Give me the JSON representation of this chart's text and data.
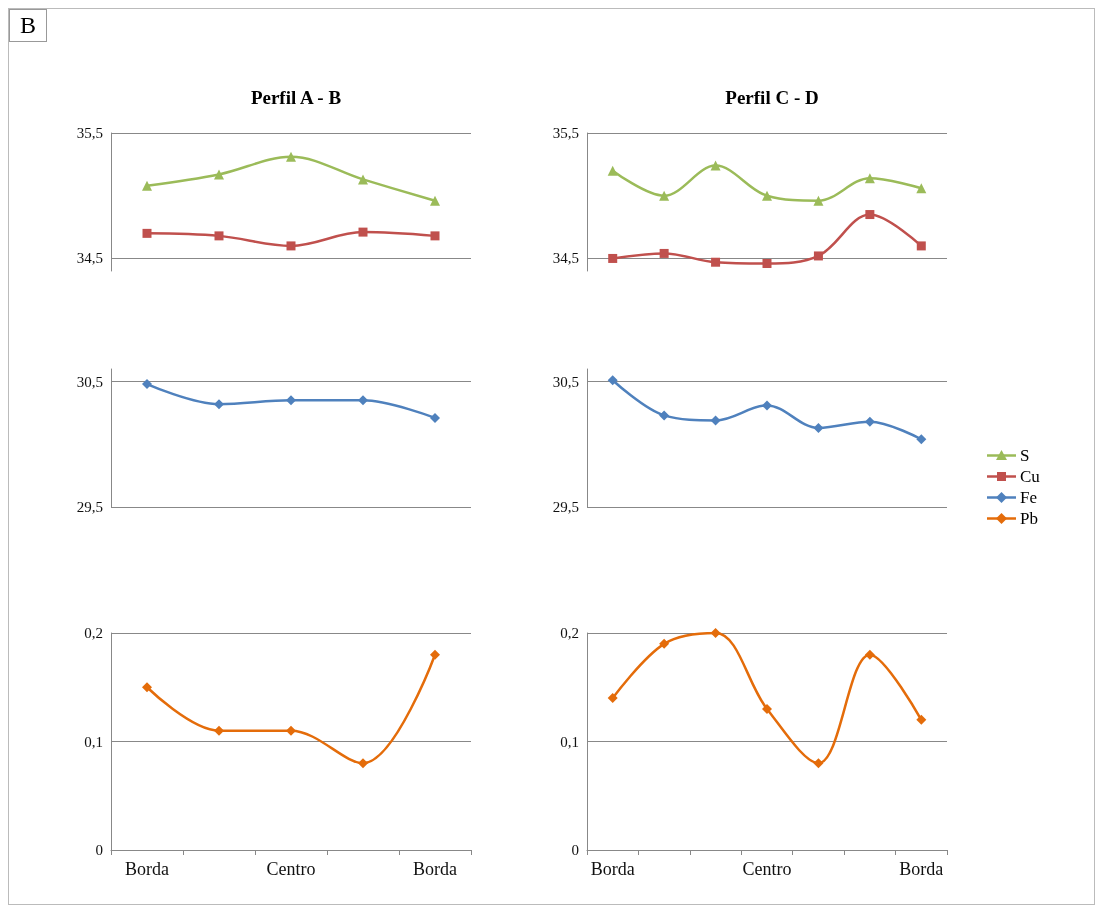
{
  "chart_data": [
    {
      "type": "line",
      "title": "Perfil A - B",
      "annotations": [
        "B"
      ],
      "categories": [
        "Borda",
        null,
        "Centro",
        null,
        "Borda"
      ],
      "tick_labels": "y",
      "yticks": [
        {
          "value": 34.5,
          "label": "34,5"
        },
        {
          "value": 35.5,
          "label": "35,5"
        }
      ],
      "ylim": [
        34.4,
        35.5
      ],
      "grid": "y",
      "legend": "right",
      "series": [
        {
          "name": "S",
          "color": "#9bbb59",
          "marker": "triangle",
          "values": [
            35.08,
            35.17,
            35.31,
            35.13,
            34.96
          ]
        },
        {
          "name": "Cu",
          "color": "#c0504d",
          "marker": "square",
          "values": [
            34.7,
            34.68,
            34.6,
            34.71,
            34.68
          ]
        }
      ]
    },
    {
      "type": "line",
      "title": "Perfil C - D",
      "categories": [
        "Borda",
        null,
        null,
        "Centro",
        null,
        null,
        "Borda"
      ],
      "tick_labels": "y",
      "yticks": [
        {
          "value": 34.5,
          "label": "34,5"
        },
        {
          "value": 35.5,
          "label": "35,5"
        }
      ],
      "ylim": [
        34.4,
        35.5
      ],
      "grid": "y",
      "legend": "right",
      "series": [
        {
          "name": "S",
          "color": "#9bbb59",
          "marker": "triangle",
          "values": [
            35.2,
            35.0,
            35.24,
            35.0,
            34.96,
            35.14,
            35.06
          ]
        },
        {
          "name": "Cu",
          "color": "#c0504d",
          "marker": "square",
          "values": [
            34.5,
            34.54,
            34.47,
            34.46,
            34.52,
            34.85,
            34.6
          ]
        }
      ]
    },
    {
      "type": "line",
      "categories": [
        "Borda",
        null,
        "Centro",
        null,
        "Borda"
      ],
      "tick_labels": "y",
      "yticks": [
        {
          "value": 29.5,
          "label": "29,5"
        },
        {
          "value": 30.5,
          "label": "30,5"
        }
      ],
      "ylim": [
        29.5,
        30.6
      ],
      "grid": "y",
      "legend": "right",
      "series": [
        {
          "name": "Fe",
          "color": "#4f81bd",
          "marker": "diamond",
          "values": [
            30.48,
            30.32,
            30.35,
            30.35,
            30.21
          ]
        }
      ]
    },
    {
      "type": "line",
      "categories": [
        "Borda",
        null,
        null,
        "Centro",
        null,
        null,
        "Borda"
      ],
      "tick_labels": "y",
      "yticks": [
        {
          "value": 29.5,
          "label": "29,5"
        },
        {
          "value": 30.5,
          "label": "30,5"
        }
      ],
      "ylim": [
        29.5,
        30.6
      ],
      "grid": "y",
      "legend": "right",
      "series": [
        {
          "name": "Fe",
          "color": "#4f81bd",
          "marker": "diamond",
          "values": [
            30.51,
            30.23,
            30.19,
            30.31,
            30.13,
            30.18,
            30.04
          ]
        }
      ]
    },
    {
      "type": "line",
      "categories": [
        "Borda",
        null,
        "Centro",
        null,
        "Borda"
      ],
      "yticks": [
        0,
        {
          "value": 0.1,
          "label": "0,1"
        },
        {
          "value": 0.2,
          "label": "0,2"
        }
      ],
      "ylim": [
        0,
        0.2
      ],
      "grid": "y",
      "legend": "right",
      "series": [
        {
          "name": "Pb",
          "color": "#e46c0a",
          "marker": "diamond",
          "values": [
            0.15,
            0.11,
            0.11,
            0.08,
            0.18
          ]
        }
      ]
    },
    {
      "type": "line",
      "categories": [
        "Borda",
        null,
        null,
        "Centro",
        null,
        null,
        "Borda"
      ],
      "yticks": [
        0,
        {
          "value": 0.1,
          "label": "0,1"
        },
        {
          "value": 0.2,
          "label": "0,2"
        }
      ],
      "ylim": [
        0,
        0.2
      ],
      "grid": "y",
      "legend": "right",
      "series": [
        {
          "name": "Pb",
          "color": "#e46c0a",
          "marker": "diamond",
          "values": [
            0.14,
            0.19,
            0.2,
            0.13,
            0.08,
            0.18,
            0.12
          ]
        }
      ]
    }
  ]
}
